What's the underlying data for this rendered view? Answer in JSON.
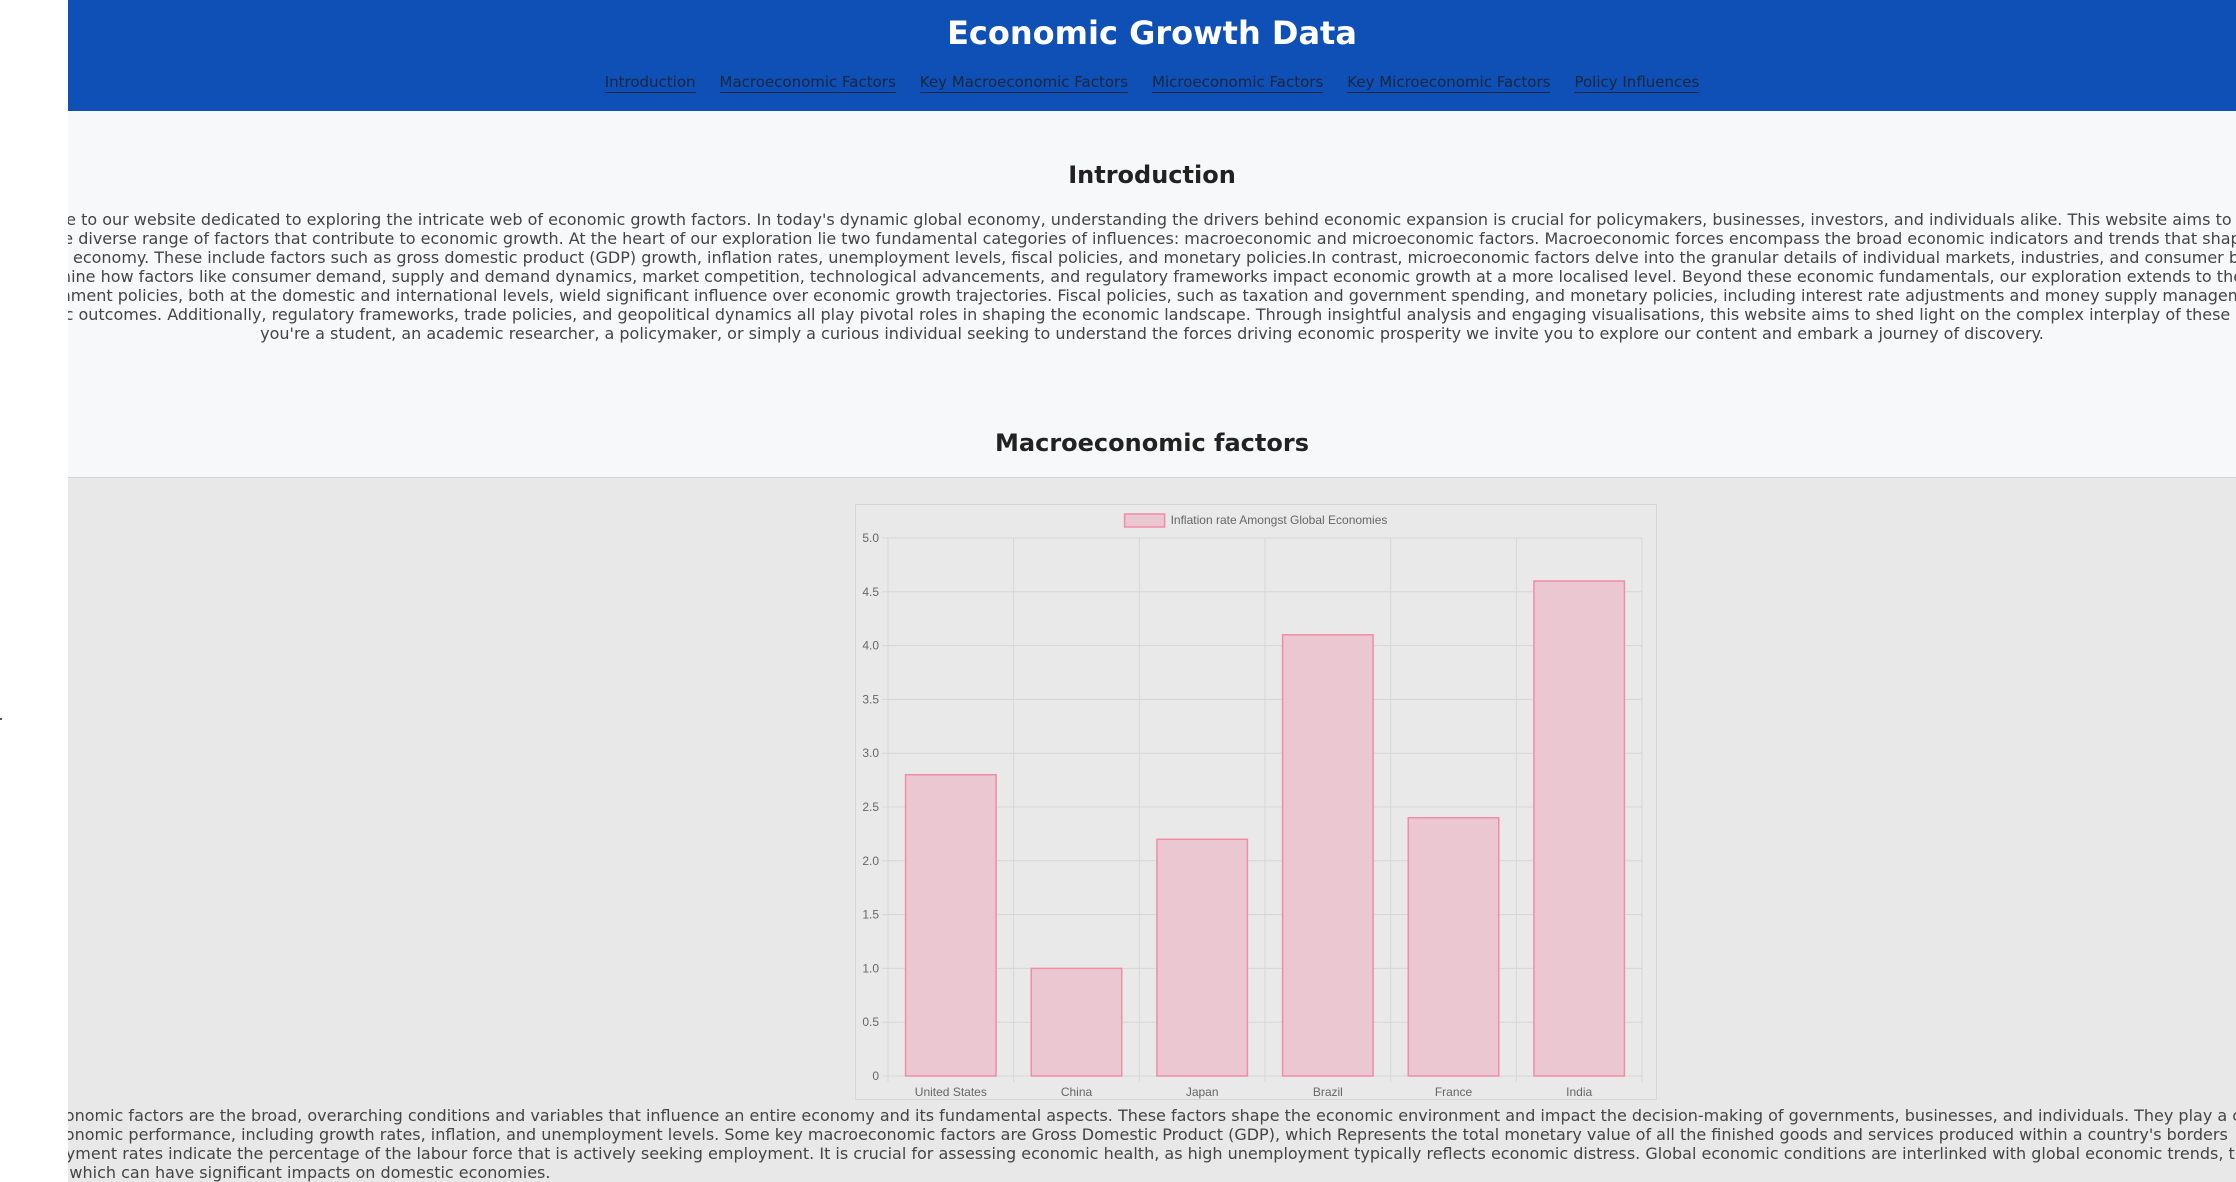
{
  "header": {
    "title": "Economic Growth Data",
    "nav": [
      "Introduction",
      "Macroeconomic Factors",
      "Key Macroeconomic Factors",
      "Microeconomic Factors",
      "Key Microeconomic Factors",
      "Policy Influences"
    ]
  },
  "intro": {
    "heading": "Introduction",
    "lines": [
      "me to our website dedicated to exploring the intricate web of economic growth factors. In today's dynamic global economy, understanding the drivers behind economic expansion is crucial for policymakers, businesses, investors, and individuals alike. This website aims to pr",
      "e diverse range of factors that contribute to economic growth. At the heart of our exploration lie two fundamental categories of influences: macroeconomic and microeconomic factors. Macroeconomic forces encompass the broad economic indicators and trends that shap",
      "'s economy. These include factors such as gross domestic product (GDP) growth, inflation rates, unemployment levels, fiscal policies, and monetary policies.In contrast, microeconomic factors delve into the granular details of individual markets, industries, and consumer be",
      "nine how factors like consumer demand, supply and demand dynamics, market competition, technological advancements, and regulatory frameworks impact economic growth at a more localised level. Beyond these economic fundamentals, our exploration extends to the",
      "nment policies, both at the domestic and international levels, wield significant influence over economic growth trajectories. Fiscal policies, such as taxation and government spending, and monetary policies, including interest rate adjustments and money supply managem",
      "nic outcomes. Additionally, regulatory frameworks, trade policies, and geopolitical dynamics all play pivotal roles in shaping the economic landscape. Through insightful analysis and engaging visualisations, this website aims to shed light on the complex interplay of these ec",
      "you're a student, an academic researcher, a policymaker, or simply a curious individual seeking to understand the forces driving economic prosperity we invite you to explore our content and embark a journey of discovery."
    ]
  },
  "macro": {
    "heading": "Macroeconomic factors",
    "lines": [
      "conomic factors are the broad, overarching conditions and variables that influence an entire economy and its fundamental aspects. These factors shape the economic environment and impact the decision-making of governments, businesses, and individuals. They play a cr",
      "conomic performance, including growth rates, inflation, and unemployment levels. Some key macroeconomic factors are Gross Domestic Product (GDP), which Represents the total monetary value of all the finished goods and services produced within a country's borders",
      "oyment rates indicate the percentage of the labour force that is actively seeking employment. It is crucial for assessing economic health, as high unemployment typically reflects economic distress. Global economic conditions are interlinked with global economic trends, t",
      "s which can have significant impacts on domestic economies."
    ]
  },
  "chart_data": {
    "type": "bar",
    "categories": [
      "United States",
      "China",
      "Japan",
      "Brazil",
      "France",
      "India"
    ],
    "series": [
      {
        "name": "Inflation rate Amongst Global Economies",
        "values": [
          2.8,
          1.0,
          2.2,
          4.1,
          2.4,
          4.6
        ]
      }
    ],
    "ylim": [
      0,
      5
    ],
    "yticks": [
      "0",
      "0.5",
      "1.0",
      "1.5",
      "2.0",
      "2.5",
      "3.0",
      "3.5",
      "4.0",
      "4.5",
      "5.0"
    ],
    "grid": true,
    "legend": "top-center",
    "colors": {
      "bar_fill": "#ebc8d1",
      "bar_stroke": "#f08ca8",
      "grid": "#d6d6d6",
      "text": "#666666"
    }
  }
}
